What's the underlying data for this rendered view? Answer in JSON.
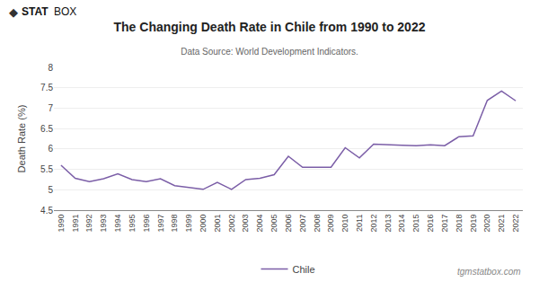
{
  "chart_data": {
    "type": "line",
    "title": "The Changing Death Rate in Chile from 1990 to 2022",
    "subtitle": "Data Source: World Development Indicators.",
    "ylabel": "Death Rate (%)",
    "annotations": [
      "◆",
      "STAT",
      "BOX",
      "tgmstatbox.com"
    ],
    "x": [
      1990,
      1991,
      1992,
      1993,
      1994,
      1995,
      1996,
      1997,
      1998,
      1999,
      2000,
      2001,
      2002,
      2003,
      2004,
      2005,
      2006,
      2007,
      2008,
      2009,
      2010,
      2011,
      2012,
      2013,
      2014,
      2015,
      2016,
      2017,
      2018,
      2019,
      2020,
      2021,
      2022
    ],
    "series": [
      {
        "name": "Chile",
        "color": "#7B5EA7",
        "values": [
          5.6,
          5.28,
          5.2,
          5.27,
          5.39,
          5.25,
          5.2,
          5.27,
          5.1,
          5.05,
          5.01,
          5.18,
          5.01,
          5.25,
          5.28,
          5.37,
          5.82,
          5.55,
          5.55,
          5.55,
          6.03,
          5.78,
          6.12,
          6.1,
          6.09,
          6.08,
          6.1,
          6.08,
          6.3,
          6.32,
          7.19,
          7.42,
          7.18
        ]
      }
    ],
    "xlim": [
      1989.5,
      2022.5
    ],
    "xticks": [
      1990,
      1991,
      1992,
      1993,
      1994,
      1995,
      1996,
      1997,
      1998,
      1999,
      2000,
      2001,
      2002,
      2003,
      2004,
      2005,
      2006,
      2007,
      2008,
      2009,
      2010,
      2011,
      2012,
      2013,
      2014,
      2015,
      2016,
      2017,
      2018,
      2019,
      2020,
      2021,
      2022
    ],
    "ylim": [
      4.5,
      8.0
    ],
    "yticks": [
      4.5,
      5.0,
      5.5,
      6.0,
      6.5,
      7.0,
      7.5,
      8.0
    ],
    "grid": true,
    "legend": "bottom"
  }
}
